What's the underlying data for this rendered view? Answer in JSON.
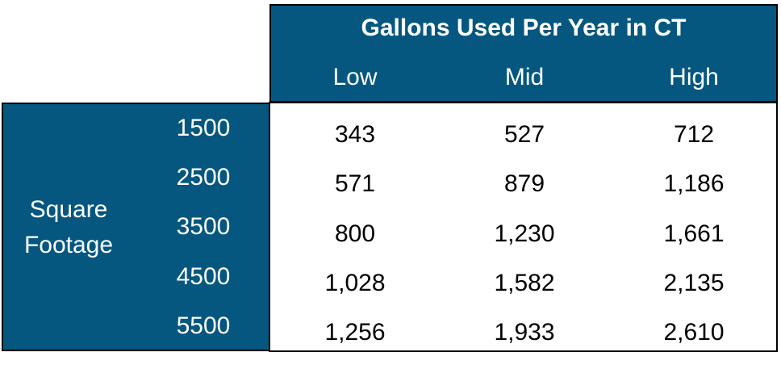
{
  "table": {
    "title": "Gallons Used Per Year in CT",
    "columns": [
      "Low",
      "Mid",
      "High"
    ],
    "row_group_label": "Square Footage",
    "rows": [
      {
        "label": "1500",
        "values": [
          "343",
          "527",
          "712"
        ]
      },
      {
        "label": "2500",
        "values": [
          "571",
          "879",
          "1,186"
        ]
      },
      {
        "label": "3500",
        "values": [
          "800",
          "1,230",
          "1,661"
        ]
      },
      {
        "label": "4500",
        "values": [
          "1,028",
          "1,582",
          "2,135"
        ]
      },
      {
        "label": "5500",
        "values": [
          "1,256",
          "1,933",
          "2,610"
        ]
      }
    ]
  },
  "colors": {
    "header_fill": "#05577f",
    "header_text": "#ffffff",
    "body_fill": "#ffffff",
    "body_text": "#000000",
    "border": "#000000"
  }
}
